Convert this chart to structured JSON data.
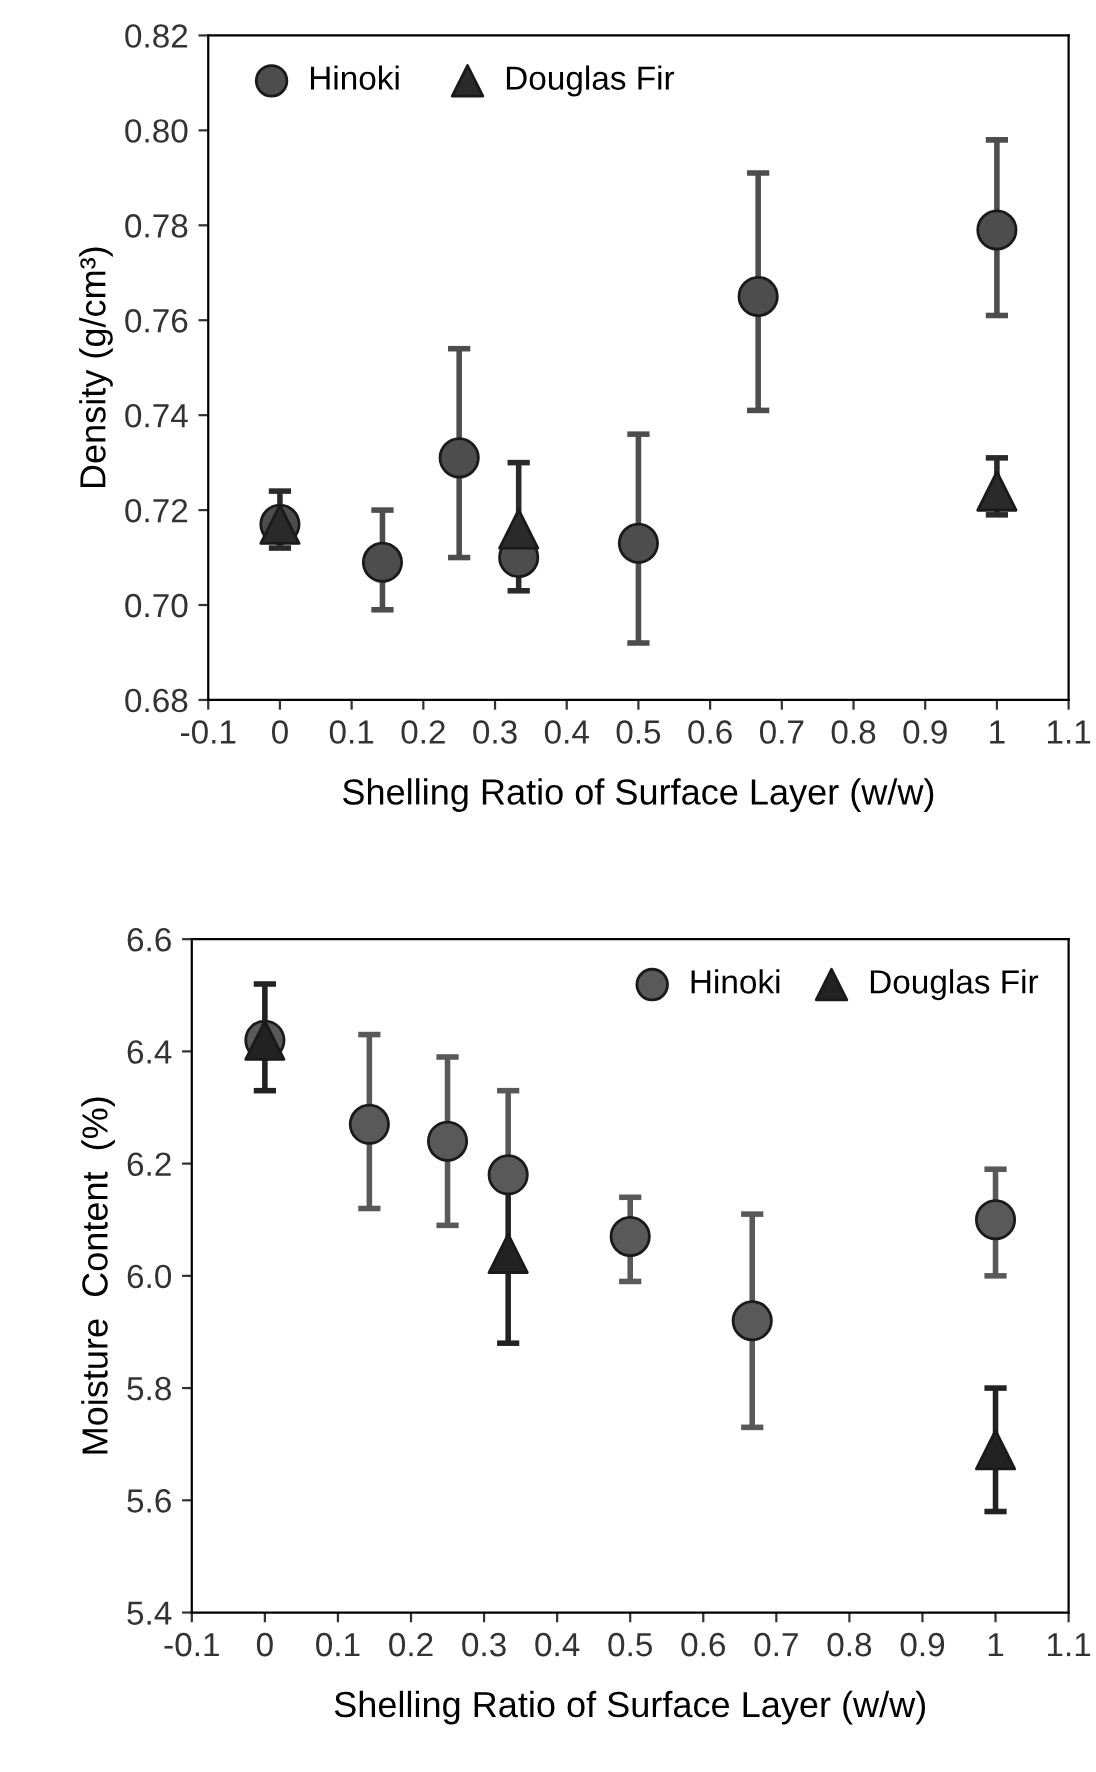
{
  "chart_data": [
    {
      "type": "scatter",
      "xlabel": "Shelling Ratio of Surface Layer (w/w)",
      "ylabel": "Density (g/cm³)",
      "xlim": [
        -0.1,
        1.1
      ],
      "xticks": [
        -0.1,
        0,
        0.1,
        0.2,
        0.3,
        0.4,
        0.5,
        0.6,
        0.7,
        0.8,
        0.9,
        1,
        1.1
      ],
      "ylim": [
        0.68,
        0.82
      ],
      "yticks": [
        {
          "value": 0.68,
          "label": "0.68"
        },
        {
          "value": 0.7,
          "label": "0.70"
        },
        {
          "value": 0.72,
          "label": "0.72"
        },
        {
          "value": 0.74,
          "label": "0.74"
        },
        {
          "value": 0.76,
          "label": "0.76"
        },
        {
          "value": 0.78,
          "label": "0.78"
        },
        {
          "value": 0.8,
          "label": "0.80"
        },
        {
          "value": 0.82,
          "label": "0.82"
        }
      ],
      "grid": false,
      "legend": "top left",
      "series": [
        {
          "name": "Hinoki",
          "color": "#4d4d4d",
          "marker": "circle",
          "x": [
            0,
            0.143,
            0.25,
            0.333,
            0.5,
            0.667,
            1
          ],
          "values": [
            0.717,
            0.709,
            0.731,
            0.71,
            0.713,
            0.765,
            0.779
          ],
          "errors": [
            null,
            [
              0.699,
              0.72
            ],
            [
              0.71,
              0.754
            ],
            null,
            [
              0.692,
              0.736
            ],
            [
              0.741,
              0.791
            ],
            [
              0.761,
              0.798
            ]
          ]
        },
        {
          "name": "Douglas Fir",
          "color": "#2a2a2a",
          "marker": "triangle",
          "x": [
            0,
            0.333,
            1
          ],
          "values": [
            0.717,
            0.716,
            0.724
          ],
          "errors": [
            [
              0.712,
              0.724
            ],
            [
              0.703,
              0.73
            ],
            [
              0.719,
              0.731
            ]
          ]
        }
      ]
    },
    {
      "type": "scatter",
      "xlabel": "Shelling Ratio of Surface Layer (w/w)",
      "ylabel": "Moisture  Content  (%)",
      "xlim": [
        -0.1,
        1.1
      ],
      "xticks": [
        -0.1,
        0,
        0.1,
        0.2,
        0.3,
        0.4,
        0.5,
        0.6,
        0.7,
        0.8,
        0.9,
        1,
        1.1
      ],
      "ylim": [
        5.4,
        6.6
      ],
      "yticks": [
        {
          "value": 5.4,
          "label": "5.4"
        },
        {
          "value": 5.6,
          "label": "5.6"
        },
        {
          "value": 5.8,
          "label": "5.8"
        },
        {
          "value": 6.0,
          "label": "6.0"
        },
        {
          "value": 6.2,
          "label": "6.2"
        },
        {
          "value": 6.4,
          "label": "6.4"
        },
        {
          "value": 6.6,
          "label": "6.6"
        }
      ],
      "grid": false,
      "legend": "top right",
      "series": [
        {
          "name": "Hinoki",
          "color": "#595959",
          "marker": "circle",
          "x": [
            0,
            0.143,
            0.25,
            0.333,
            0.5,
            0.667,
            1
          ],
          "values": [
            6.42,
            6.27,
            6.24,
            6.18,
            6.07,
            5.92,
            6.1
          ],
          "errors": [
            null,
            [
              6.12,
              6.43
            ],
            [
              6.09,
              6.39
            ],
            [
              6.18,
              6.33
            ],
            [
              5.99,
              6.14
            ],
            [
              5.73,
              6.11
            ],
            [
              6.0,
              6.19
            ]
          ]
        },
        {
          "name": "Douglas Fir",
          "color": "#222222",
          "marker": "triangle",
          "x": [
            0,
            0.333,
            1
          ],
          "values": [
            6.42,
            6.04,
            5.69
          ],
          "errors": [
            [
              6.33,
              6.52
            ],
            [
              5.88,
              6.2
            ],
            [
              5.58,
              5.8
            ]
          ]
        }
      ]
    }
  ]
}
